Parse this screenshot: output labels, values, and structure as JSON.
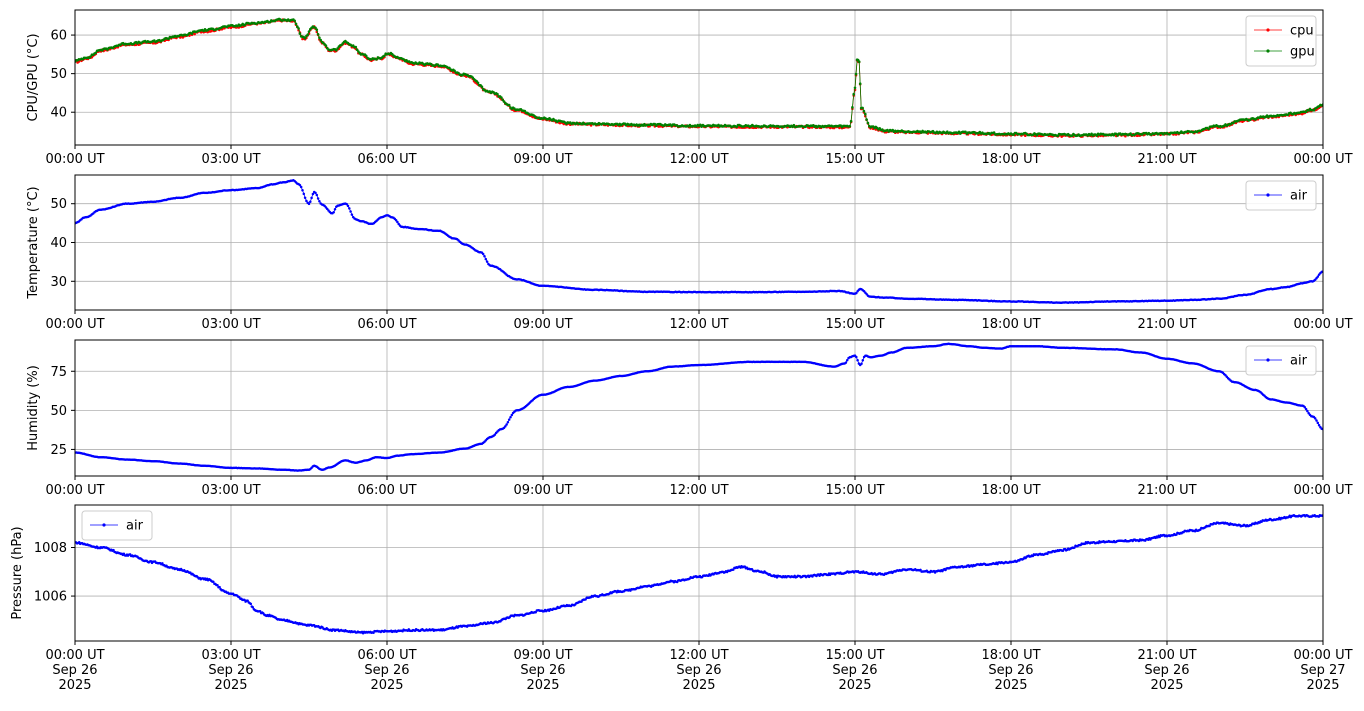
{
  "colors": {
    "cpu": "#ff0000",
    "gpu": "#008000",
    "air": "#0000ff",
    "grid": "#b0b0b0",
    "axis": "#000000"
  },
  "chart_data": [
    {
      "type": "line",
      "ylabel": "CPU/GPU (°C)",
      "xlim": [
        0,
        24
      ],
      "ylim": [
        31.5,
        66.5
      ],
      "yticks": [
        40,
        50,
        60
      ],
      "x_ticks": [
        0,
        3,
        6,
        9,
        12,
        15,
        18,
        21,
        24
      ],
      "x_tick_labels": [
        "00:00 UT",
        "03:00 UT",
        "06:00 UT",
        "09:00 UT",
        "12:00 UT",
        "15:00 UT",
        "18:00 UT",
        "21:00 UT",
        "00:00 UT"
      ],
      "grid": true,
      "legend": "upper right",
      "series": [
        {
          "name": "cpu",
          "color": "#ff0000",
          "x": [
            0,
            0.25,
            0.5,
            1,
            1.5,
            2,
            2.5,
            3,
            3.5,
            4,
            4.2,
            4.4,
            4.6,
            4.75,
            4.9,
            5,
            5.2,
            5.35,
            5.5,
            5.7,
            5.9,
            6,
            6.05,
            6.2,
            6.5,
            7,
            7.5,
            8,
            8.5,
            9,
            9.5,
            10,
            11,
            12,
            13,
            14,
            14.9,
            15.0,
            15.04,
            15.08,
            15.12,
            15.3,
            15.6,
            16,
            17,
            18,
            19,
            20,
            21,
            21.5,
            22,
            22.5,
            23,
            23.5,
            23.8,
            24
          ],
          "y": [
            53,
            54,
            56,
            57.5,
            58,
            59.5,
            61,
            62,
            63,
            63.8,
            63.6,
            59,
            62,
            58,
            56,
            56,
            58,
            57,
            55,
            53.5,
            54,
            55,
            55,
            54,
            52.5,
            52,
            49.5,
            45,
            40.5,
            38.2,
            37,
            36.8,
            36.5,
            36.3,
            36.2,
            36.2,
            36.1,
            46,
            53.5,
            53,
            41,
            36,
            35,
            34.8,
            34.5,
            34.2,
            33.9,
            34,
            34.3,
            34.8,
            36.2,
            37.8,
            38.8,
            39.5,
            40.5,
            41.8
          ]
        },
        {
          "name": "gpu",
          "color": "#008000",
          "x": [
            0,
            0.25,
            0.5,
            1,
            1.5,
            2,
            2.5,
            3,
            3.5,
            4,
            4.2,
            4.4,
            4.6,
            4.75,
            4.9,
            5,
            5.2,
            5.35,
            5.5,
            5.7,
            5.9,
            6,
            6.05,
            6.2,
            6.5,
            7,
            7.5,
            8,
            8.5,
            9,
            9.5,
            10,
            11,
            12,
            13,
            14,
            14.9,
            15.0,
            15.04,
            15.08,
            15.12,
            15.3,
            15.6,
            16,
            17,
            18,
            19,
            20,
            21,
            21.5,
            22,
            22.5,
            23,
            23.5,
            23.8,
            24
          ],
          "y": [
            53.3,
            54.3,
            56.2,
            57.8,
            58.3,
            59.8,
            61.3,
            62.3,
            63.2,
            64,
            63.8,
            59.2,
            62.2,
            58.2,
            56.2,
            56.2,
            58.2,
            57.2,
            55.2,
            53.7,
            54.2,
            55.2,
            55.2,
            54.2,
            52.7,
            52.2,
            49.7,
            45.2,
            40.7,
            38.4,
            37.2,
            37,
            36.7,
            36.5,
            36.4,
            36.4,
            36.3,
            46.2,
            53.7,
            53.2,
            41.2,
            36.2,
            35.2,
            35,
            34.7,
            34.4,
            34.1,
            34.2,
            34.5,
            35,
            36.4,
            38,
            39,
            39.7,
            40.7,
            42
          ]
        }
      ]
    },
    {
      "type": "line",
      "ylabel": "Temperature (°C)",
      "xlim": [
        0,
        24
      ],
      "ylim": [
        22.6,
        57.4
      ],
      "yticks": [
        30,
        40,
        50
      ],
      "x_ticks": [
        0,
        3,
        6,
        9,
        12,
        15,
        18,
        21,
        24
      ],
      "x_tick_labels": [
        "00:00 UT",
        "03:00 UT",
        "06:00 UT",
        "09:00 UT",
        "12:00 UT",
        "15:00 UT",
        "18:00 UT",
        "21:00 UT",
        "00:00 UT"
      ],
      "grid": true,
      "legend": "upper right",
      "series": [
        {
          "name": "air",
          "color": "#0000ff",
          "x": [
            0,
            0.2,
            0.5,
            1,
            1.5,
            2,
            2.5,
            3,
            3.5,
            3.8,
            4,
            4.2,
            4.3,
            4.5,
            4.6,
            4.75,
            4.95,
            5.05,
            5.2,
            5.4,
            5.5,
            5.7,
            5.9,
            6,
            6.1,
            6.3,
            6.6,
            7,
            7.3,
            7.5,
            7.8,
            8,
            8.5,
            9,
            10,
            11,
            12,
            13,
            14,
            14.7,
            15,
            15.1,
            15.3,
            15.6,
            16,
            17,
            18,
            19,
            20,
            21,
            21.5,
            22,
            22.5,
            23,
            23.3,
            23.6,
            23.8,
            24
          ],
          "y": [
            45,
            46.5,
            48.5,
            50,
            50.5,
            51.5,
            52.8,
            53.5,
            54,
            55,
            55.5,
            56,
            55,
            50,
            53,
            49.8,
            47.5,
            49.5,
            50,
            46,
            45.5,
            44.8,
            46.5,
            47,
            46.5,
            44,
            43.5,
            43,
            41,
            39.5,
            37.5,
            34,
            30.5,
            28.8,
            27.8,
            27.3,
            27.2,
            27.2,
            27.3,
            27.5,
            26.8,
            28,
            26,
            25.8,
            25.5,
            25.2,
            24.8,
            24.5,
            24.8,
            25,
            25.2,
            25.5,
            26.5,
            28,
            28.5,
            29.5,
            30,
            32.5
          ]
        }
      ]
    },
    {
      "type": "line",
      "ylabel": "Humidity (%)",
      "xlim": [
        0,
        24
      ],
      "ylim": [
        8,
        95
      ],
      "yticks": [
        25,
        50,
        75
      ],
      "x_ticks": [
        0,
        3,
        6,
        9,
        12,
        15,
        18,
        21,
        24
      ],
      "x_tick_labels": [
        "00:00 UT",
        "03:00 UT",
        "06:00 UT",
        "09:00 UT",
        "12:00 UT",
        "15:00 UT",
        "18:00 UT",
        "21:00 UT",
        "00:00 UT"
      ],
      "grid": true,
      "legend": "upper right",
      "series": [
        {
          "name": "air",
          "color": "#0000ff",
          "x": [
            0,
            0.5,
            1,
            1.5,
            2,
            2.5,
            3,
            3.5,
            4,
            4.3,
            4.5,
            4.6,
            4.75,
            4.9,
            5.2,
            5.4,
            5.6,
            5.8,
            6,
            6.2,
            6.5,
            7,
            7.5,
            7.8,
            8,
            8.2,
            8.5,
            9,
            9.5,
            10,
            10.5,
            11,
            11.5,
            12,
            13,
            14,
            14.6,
            14.8,
            14.9,
            15,
            15.1,
            15.2,
            15.3,
            15.5,
            15.7,
            16,
            16.5,
            16.8,
            17.2,
            17.5,
            17.8,
            18,
            18.5,
            19,
            20,
            20.5,
            21,
            21.5,
            22,
            22.3,
            22.7,
            23,
            23.3,
            23.6,
            23.8,
            24
          ],
          "y": [
            23,
            20,
            18.5,
            17.5,
            16,
            14.5,
            13.2,
            12.8,
            12,
            11.5,
            12,
            14.5,
            12,
            13.5,
            18,
            16.5,
            18,
            20,
            19.5,
            21,
            22,
            23,
            25.5,
            28.5,
            33,
            38,
            50,
            60,
            65,
            69,
            72,
            75,
            78,
            79,
            81,
            81,
            78,
            80,
            84,
            85,
            79,
            85,
            84,
            85,
            87,
            90,
            91,
            92.5,
            91,
            90,
            89.5,
            91,
            91,
            90,
            89,
            87,
            83,
            80,
            75,
            68,
            63,
            57,
            55,
            53,
            46,
            38
          ]
        }
      ]
    },
    {
      "type": "scatter",
      "ylabel": "Pressure (hPa)",
      "xlim": [
        0,
        24
      ],
      "ylim": [
        1004.15,
        1009.75
      ],
      "yticks": [
        1006,
        1008
      ],
      "x_ticks": [
        0,
        3,
        6,
        9,
        12,
        15,
        18,
        21,
        24
      ],
      "x_tick_labels": [
        "00:00 UT\nSep 26\n2025",
        "03:00 UT\nSep 26\n2025",
        "06:00 UT\nSep 26\n2025",
        "09:00 UT\nSep 26\n2025",
        "12:00 UT\nSep 26\n2025",
        "15:00 UT\nSep 26\n2025",
        "18:00 UT\nSep 26\n2025",
        "21:00 UT\nSep 26\n2025",
        "00:00 UT\nSep 27\n2025"
      ],
      "grid": true,
      "legend": "upper left",
      "series": [
        {
          "name": "air",
          "color": "#0000ff",
          "x": [
            0,
            0.5,
            1,
            1.5,
            2,
            2.5,
            3,
            3.3,
            3.5,
            3.7,
            4,
            4.5,
            5,
            5.5,
            6,
            6.5,
            7,
            7.5,
            8,
            8.5,
            9,
            9.5,
            10,
            10.5,
            11,
            11.5,
            12,
            12.5,
            12.8,
            13.2,
            13.5,
            14,
            14.5,
            15,
            15.5,
            16,
            16.5,
            17,
            17.5,
            18,
            18.5,
            19,
            19.5,
            20,
            20.5,
            21,
            21.5,
            22,
            22.5,
            23,
            23.5,
            24
          ],
          "y": [
            1008.2,
            1008,
            1007.7,
            1007.4,
            1007.1,
            1006.7,
            1006.1,
            1005.8,
            1005.4,
            1005.2,
            1005,
            1004.8,
            1004.6,
            1004.5,
            1004.55,
            1004.6,
            1004.6,
            1004.75,
            1004.9,
            1005.2,
            1005.4,
            1005.6,
            1006,
            1006.2,
            1006.4,
            1006.6,
            1006.8,
            1007,
            1007.2,
            1007,
            1006.8,
            1006.8,
            1006.9,
            1007,
            1006.9,
            1007.1,
            1007.0,
            1007.2,
            1007.3,
            1007.4,
            1007.7,
            1007.9,
            1008.2,
            1008.25,
            1008.3,
            1008.5,
            1008.7,
            1009,
            1008.9,
            1009.15,
            1009.3,
            1009.3
          ]
        }
      ]
    }
  ]
}
